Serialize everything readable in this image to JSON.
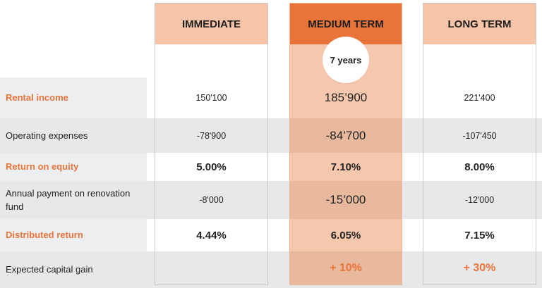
{
  "columns": {
    "immediate": "IMMEDIATE",
    "medium_term": "MEDIUM TERM",
    "long_term": "LONG TERM"
  },
  "medium_term_badge": "7 years",
  "rows": [
    {
      "label": "Rental income",
      "immediate": "150'100",
      "medium": "185’900",
      "long": "221'400"
    },
    {
      "label": "Operating expenses",
      "immediate": "-78'900",
      "medium": "-84’700",
      "long": "-107'450"
    },
    {
      "label": "Return on equity",
      "immediate": "5.00%",
      "medium": "7.10%",
      "long": "8.00%"
    },
    {
      "label": "Annual payment on renovation fund",
      "immediate": "-8'000",
      "medium": "-15’000",
      "long": "-12'000"
    },
    {
      "label": "Distributed return",
      "immediate": "4.44%",
      "medium": "6.05%",
      "long": "7.15%"
    },
    {
      "label": "Expected capital gain",
      "immediate": "",
      "medium": "+ 10%",
      "long": "+ 30%"
    }
  ],
  "colors": {
    "accent_orange": "#e8743a",
    "header_peach": "#f6c4a8",
    "medium_column": "#f5c7ad",
    "row_grey": "#eceef0"
  }
}
